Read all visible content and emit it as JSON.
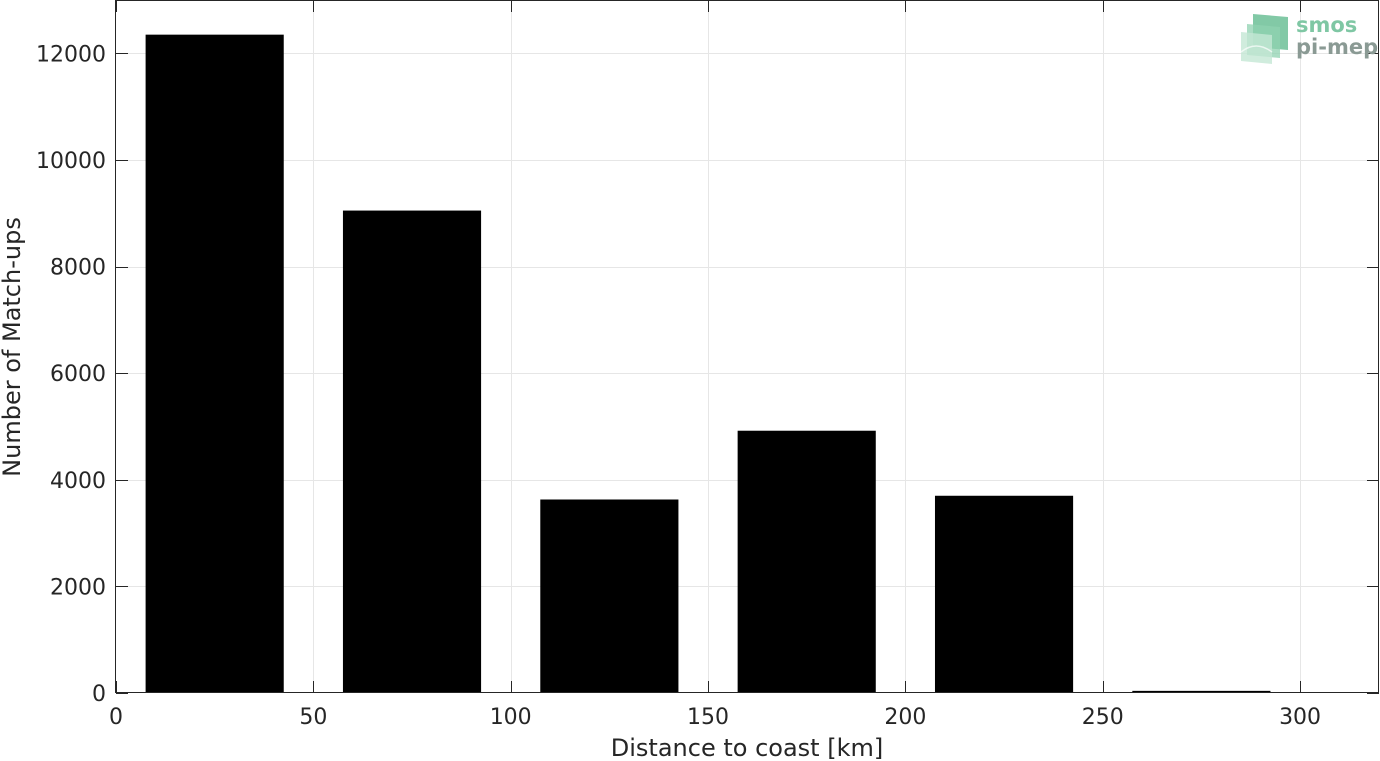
{
  "chart_data": {
    "type": "bar",
    "xlabel": "Distance to coast [km]",
    "ylabel": "Number of Match-ups",
    "xlim": [
      0,
      320
    ],
    "ylim": [
      0,
      13000
    ],
    "xticks": [
      0,
      50,
      100,
      150,
      200,
      250,
      300
    ],
    "yticks": [
      0,
      2000,
      4000,
      6000,
      8000,
      10000,
      12000
    ],
    "grid": true,
    "bar_width": 35,
    "bars": [
      {
        "x": 25,
        "value": 12350
      },
      {
        "x": 75,
        "value": 9050
      },
      {
        "x": 125,
        "value": 3630
      },
      {
        "x": 175,
        "value": 4920
      },
      {
        "x": 225,
        "value": 3700
      },
      {
        "x": 275,
        "value": 40
      }
    ],
    "bar_color": "#000000"
  },
  "logo": {
    "line1": "smos",
    "line2": "pi-mep",
    "color1": "#7fc7a4",
    "color2": "#8a9a94"
  }
}
